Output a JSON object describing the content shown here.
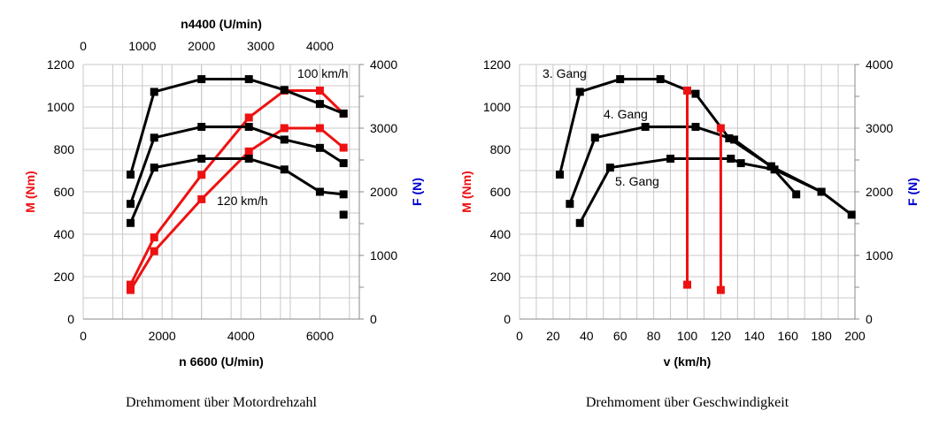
{
  "colors": {
    "torque": "#ee1111",
    "force": "#0000cc",
    "black": "#000000",
    "grid": "#c8c8c8"
  },
  "chart_data": [
    {
      "type": "line",
      "caption": "Drehmoment über Motordrehzahl",
      "xlabel": "n 6600 (U/min)",
      "x2label": "n4400 (U/min)",
      "ylabel": "M (Nm)",
      "y2label": "F (N)",
      "xlim": [
        0,
        7000
      ],
      "x2lim": [
        0,
        4667
      ],
      "ylim": [
        0,
        1200
      ],
      "y2lim": [
        0,
        4000
      ],
      "xticks": [
        "0",
        "2000",
        "4000",
        "6000"
      ],
      "x2ticks": [
        "0",
        "1000",
        "2000",
        "3000",
        "4000"
      ],
      "yticks": [
        "0",
        "200",
        "400",
        "600",
        "800",
        "1000",
        "1200"
      ],
      "y2ticks": [
        "0",
        "1000",
        "2000",
        "3000",
        "4000"
      ],
      "grid": true,
      "annotations": [
        "100 km/h",
        "120 km/h"
      ],
      "series": [
        {
          "color": "red",
          "axis": "M",
          "x": [
            1200,
            1800,
            3000,
            4200,
            5100,
            6000,
            6600
          ],
          "y": [
            162,
            385,
            680,
            950,
            1077,
            1077,
            968
          ]
        },
        {
          "color": "red",
          "axis": "M",
          "x": [
            1200,
            1800,
            3000,
            4200,
            5100,
            6000,
            6600
          ],
          "y": [
            137,
            320,
            565,
            790,
            900,
            900,
            808
          ]
        },
        {
          "color": "black",
          "axis": "F",
          "x": [
            1200,
            1800,
            3000,
            4200,
            5100,
            6000,
            6600
          ],
          "y": [
            2270,
            3570,
            3770,
            3770,
            3600,
            3380,
            3230
          ]
        },
        {
          "color": "black",
          "axis": "F",
          "x": [
            1200,
            1800,
            3000,
            4200,
            5100,
            6000,
            6600
          ],
          "y": [
            1810,
            2850,
            3020,
            3020,
            2820,
            2690,
            2450
          ]
        },
        {
          "color": "black",
          "axis": "F",
          "x": [
            1200,
            1800,
            3000,
            4200,
            5100,
            6000,
            6600
          ],
          "y": [
            1510,
            2380,
            2520,
            2520,
            2350,
            2000,
            1960
          ]
        }
      ],
      "extra_black_points": [
        {
          "x": 6600,
          "y": 1640
        }
      ]
    },
    {
      "type": "line",
      "caption": "Drehmoment über Geschwindigkeit",
      "xlabel": "v (km/h)",
      "ylabel": "M (Nm)",
      "y2label": "F (N)",
      "xlim": [
        0,
        200
      ],
      "ylim": [
        0,
        1200
      ],
      "y2lim": [
        0,
        4000
      ],
      "xticks": [
        "0",
        "20",
        "40",
        "60",
        "80",
        "100",
        "120",
        "140",
        "160",
        "180",
        "200"
      ],
      "yticks": [
        "0",
        "200",
        "400",
        "600",
        "800",
        "1000",
        "1200"
      ],
      "y2ticks": [
        "0",
        "1000",
        "2000",
        "3000",
        "4000"
      ],
      "grid": true,
      "series": [
        {
          "name": "3. Gang",
          "color": "black",
          "axis": "F",
          "x": [
            24,
            36,
            60,
            84,
            105,
            125,
            150,
            165
          ],
          "y": [
            2270,
            3570,
            3770,
            3770,
            3540,
            2840,
            2400,
            1960
          ]
        },
        {
          "name": "4. Gang",
          "color": "black",
          "axis": "F",
          "x": [
            30,
            45,
            75,
            105,
            128,
            150,
            180,
            198
          ],
          "y": [
            1810,
            2850,
            3020,
            3020,
            2820,
            2400,
            2000,
            1640
          ]
        },
        {
          "name": "5. Gang",
          "color": "black",
          "axis": "F",
          "x": [
            36,
            54,
            90,
            126,
            132,
            152,
            180
          ],
          "y": [
            1510,
            2380,
            2520,
            2520,
            2450,
            2350,
            2000
          ]
        },
        {
          "color": "red",
          "axis": "M",
          "x": [
            100,
            100
          ],
          "y": [
            162,
            1077
          ]
        },
        {
          "color": "red",
          "axis": "M",
          "x": [
            120,
            120
          ],
          "y": [
            137,
            900
          ]
        }
      ]
    }
  ]
}
